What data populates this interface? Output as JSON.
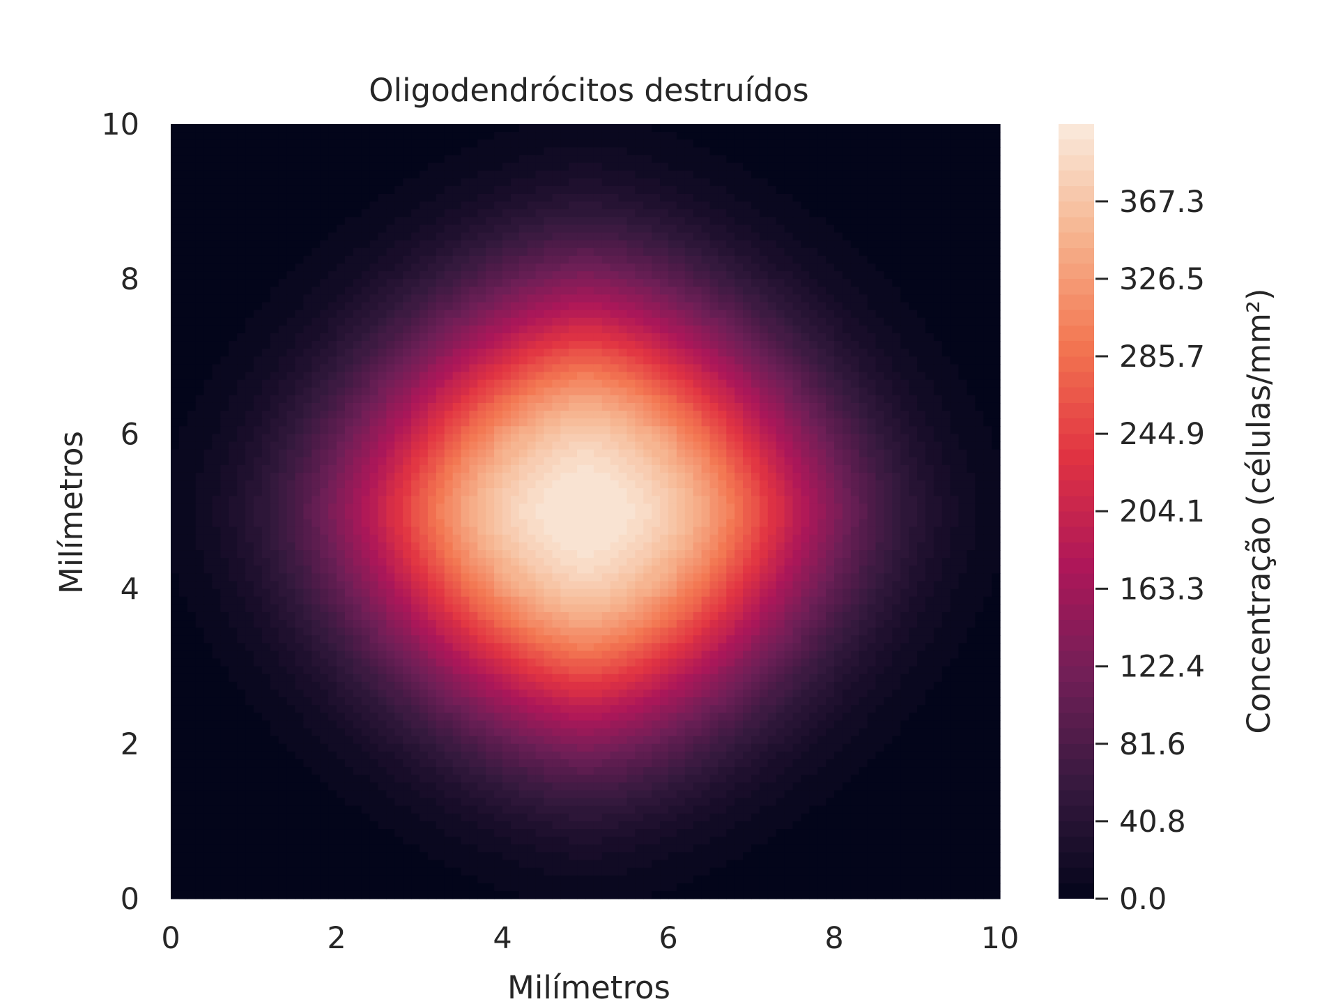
{
  "chart_data": {
    "type": "heatmap",
    "subtype": "filled-contour",
    "title": "Oligodendrócitos destruídos",
    "xlabel": "Milímetros",
    "ylabel": "Milímetros",
    "xlim": [
      0,
      10
    ],
    "ylim": [
      0,
      10
    ],
    "xticks": [
      "0",
      "2",
      "4",
      "6",
      "8",
      "10"
    ],
    "yticks": [
      "0",
      "2",
      "4",
      "6",
      "8",
      "10"
    ],
    "colorbar": {
      "label": "Concentração (células/mm²)",
      "range": [
        0,
        408
      ],
      "ticks": [
        "0.0",
        "40.8",
        "81.6",
        "122.4",
        "163.3",
        "204.1",
        "244.9",
        "285.7",
        "326.5",
        "367.3"
      ],
      "tick_values": [
        0,
        40.8,
        81.6,
        122.4,
        163.3,
        204.1,
        244.9,
        285.7,
        326.5,
        367.3
      ],
      "colormap": "rocket",
      "colormap_stops": [
        "#03051a",
        "#35193e",
        "#701f57",
        "#ad1759",
        "#e13342",
        "#f37651",
        "#f6b48f",
        "#faebdd"
      ],
      "levels": 50
    },
    "field": {
      "shape": "rounded diamond centered peak",
      "center": [
        5,
        5
      ],
      "peak_value": 408,
      "half_width_mm": 2.9
    },
    "grid": false
  }
}
